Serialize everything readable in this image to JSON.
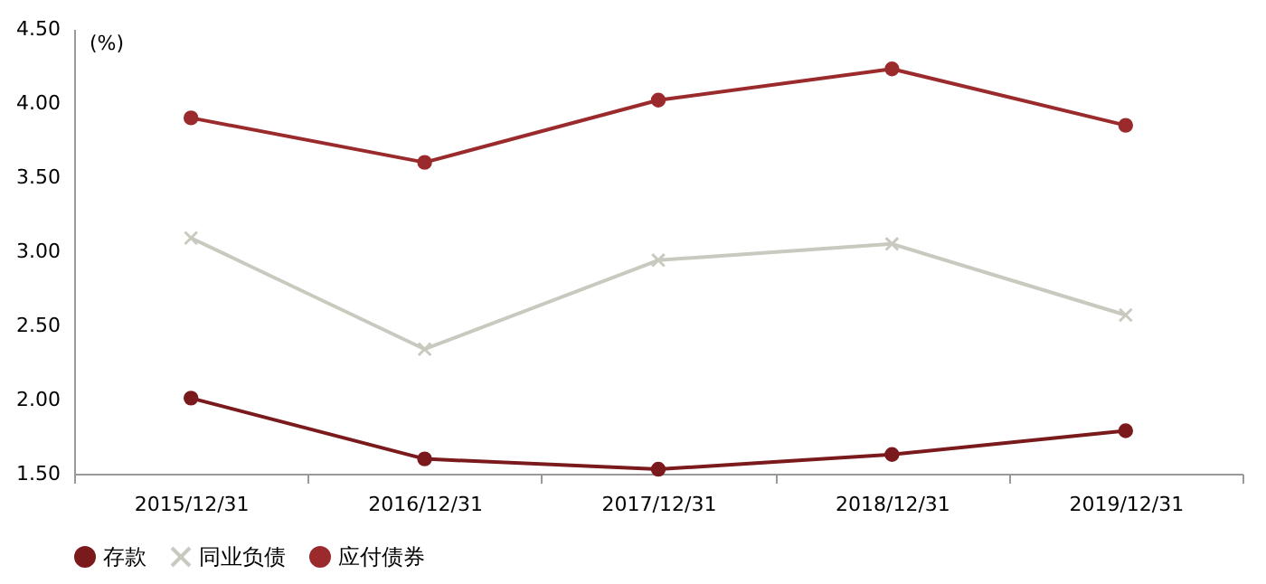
{
  "chart_data": {
    "type": "line",
    "ylabel": "(%)",
    "categories": [
      "2015/12/31",
      "2016/12/31",
      "2017/12/31",
      "2018/12/31",
      "2019/12/31"
    ],
    "series": [
      {
        "name": "存款",
        "color": "#7a1a1c",
        "marker": "circle",
        "values": [
          2.01,
          1.6,
          1.53,
          1.63,
          1.79
        ]
      },
      {
        "name": "同业负债",
        "color": "#c9c9bf",
        "marker": "cross",
        "values": [
          3.09,
          2.34,
          2.94,
          3.05,
          2.57
        ]
      },
      {
        "name": "应付债券",
        "color": "#9a2a2c",
        "marker": "circle",
        "values": [
          3.9,
          3.6,
          4.02,
          4.23,
          3.85
        ]
      }
    ],
    "ylim": [
      1.5,
      4.5
    ],
    "yticks": [
      {
        "value": 1.5,
        "label": "1.50"
      },
      {
        "value": 2,
        "label": "2.00"
      },
      {
        "value": 2.5,
        "label": "2.50"
      },
      {
        "value": 3,
        "label": "3.00"
      },
      {
        "value": 3.5,
        "label": "3.50"
      },
      {
        "value": 4,
        "label": "4.00"
      },
      {
        "value": 4.5,
        "label": "4.50"
      }
    ],
    "grid": false,
    "legend": "bottom"
  }
}
